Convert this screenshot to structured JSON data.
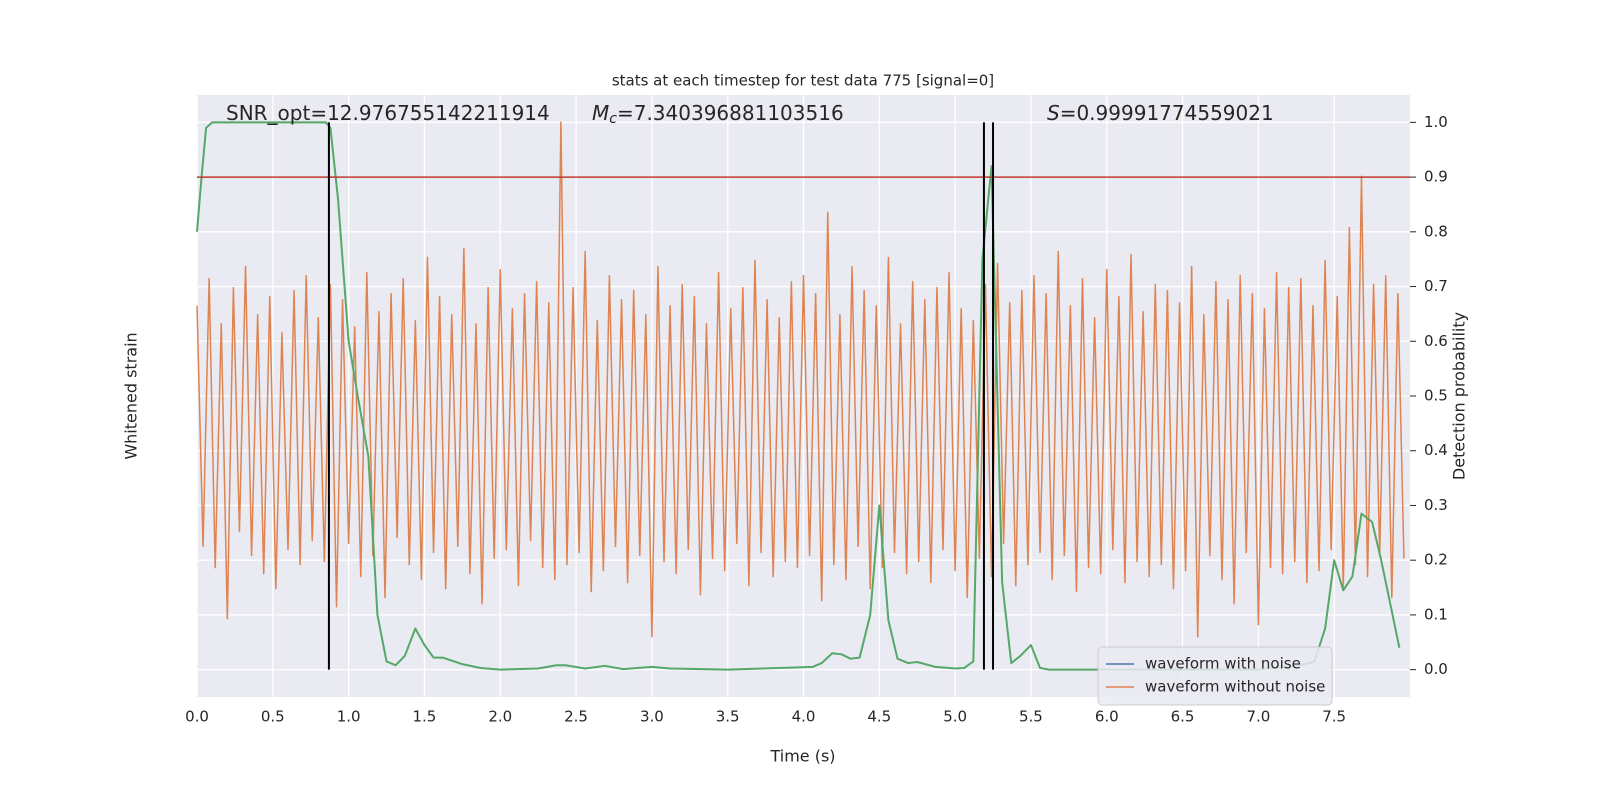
{
  "chart_data": {
    "type": "line",
    "title": "stats at each timestep for test data 775 [signal=0]",
    "xlabel": "Time (s)",
    "ylabel": "Whitened strain",
    "y2label": "Detection probability",
    "annotations": [
      {
        "text": "SNR_opt=12.976755142211914"
      },
      {
        "symbol": "M",
        "subscript": "c",
        "text": "=7.340396881103516"
      },
      {
        "symbol": "S",
        "text": "=0.99991774559021"
      }
    ],
    "xlim": [
      0,
      8
    ],
    "xticks": [
      {
        "value": 0,
        "label": "0.0"
      },
      0.5,
      {
        "value": 1,
        "label": "1.0"
      },
      1.5,
      {
        "value": 2,
        "label": "2.0"
      },
      2.5,
      {
        "value": 3,
        "label": "3.0"
      },
      3.5,
      {
        "value": 4,
        "label": "4.0"
      },
      4.5,
      {
        "value": 5,
        "label": "5.0"
      },
      5.5,
      {
        "value": 6,
        "label": "6.0"
      },
      6.5,
      {
        "value": 7,
        "label": "7.0"
      },
      7.5
    ],
    "ylim": [
      -0.88,
      1.12
    ],
    "y2lim": [
      -0.05,
      1.05
    ],
    "y2ticks": [
      {
        "value": 0,
        "label": "0.0"
      },
      0.1,
      0.2,
      0.3,
      0.4,
      0.5,
      0.6,
      0.7,
      0.8,
      0.9,
      {
        "value": 1,
        "label": "1.0"
      }
    ],
    "grid": true,
    "legend": "lower right",
    "threshold": {
      "value": 0.9,
      "color": "#c0392b"
    },
    "vlines": {
      "values": [
        0.87,
        5.19,
        5.25
      ],
      "color": "#000000"
    },
    "series": [
      {
        "name": "waveform with noise",
        "color": "#4c72b0"
      },
      {
        "name": "waveform without noise",
        "color": "#dd8452",
        "x": [
          0,
          0.04,
          0.08,
          0.12,
          0.16,
          0.2,
          0.24,
          0.28,
          0.32,
          0.36,
          0.4,
          0.44,
          0.48,
          0.52,
          0.56,
          0.6,
          0.64,
          0.68,
          0.72,
          0.76,
          0.8,
          0.84,
          0.88,
          0.92,
          0.96,
          1,
          1.04,
          1.08,
          1.12,
          1.16,
          1.2,
          1.24,
          1.28,
          1.32,
          1.36,
          1.4,
          1.44,
          1.48,
          1.52,
          1.56,
          1.6,
          1.64,
          1.68,
          1.72,
          1.76,
          1.8,
          1.84,
          1.88,
          1.92,
          1.96,
          2,
          2.04,
          2.08,
          2.12,
          2.16,
          2.2,
          2.24,
          2.28,
          2.32,
          2.36,
          2.4,
          2.44,
          2.48,
          2.52,
          2.56,
          2.6,
          2.64,
          2.68,
          2.72,
          2.76,
          2.8,
          2.84,
          2.88,
          2.92,
          2.96,
          3,
          3.04,
          3.08,
          3.12,
          3.16,
          3.2,
          3.24,
          3.28,
          3.32,
          3.36,
          3.4,
          3.44,
          3.48,
          3.52,
          3.56,
          3.6,
          3.64,
          3.68,
          3.72,
          3.76,
          3.8,
          3.84,
          3.88,
          3.92,
          3.96,
          4,
          4.04,
          4.08,
          4.12,
          4.16,
          4.2,
          4.24,
          4.28,
          4.32,
          4.36,
          4.4,
          4.44,
          4.48,
          4.52,
          4.56,
          4.6,
          4.64,
          4.68,
          4.72,
          4.76,
          4.8,
          4.84,
          4.88,
          4.92,
          4.96,
          5,
          5.04,
          5.08,
          5.12,
          5.16,
          5.2,
          5.24,
          5.28,
          5.32,
          5.36,
          5.4,
          5.44,
          5.48,
          5.52,
          5.56,
          5.6,
          5.64,
          5.68,
          5.72,
          5.76,
          5.8,
          5.84,
          5.88,
          5.92,
          5.96,
          6,
          6.04,
          6.08,
          6.12,
          6.16,
          6.2,
          6.24,
          6.28,
          6.32,
          6.36,
          6.4,
          6.44,
          6.48,
          6.52,
          6.56,
          6.6,
          6.64,
          6.68,
          6.72,
          6.76,
          6.8,
          6.84,
          6.88,
          6.92,
          6.96,
          7,
          7.04,
          7.08,
          7.12,
          7.16,
          7.2,
          7.24,
          7.28,
          7.32,
          7.36,
          7.4,
          7.44,
          7.48,
          7.52,
          7.56,
          7.6,
          7.64,
          7.68,
          7.72,
          7.76,
          7.8,
          7.84,
          7.88,
          7.92,
          7.96
        ],
        "values": [
          0.42,
          -0.38,
          0.51,
          -0.45,
          0.36,
          -0.62,
          0.48,
          -0.33,
          0.55,
          -0.41,
          0.39,
          -0.47,
          0.45,
          -0.52,
          0.33,
          -0.39,
          0.47,
          -0.44,
          0.52,
          -0.36,
          0.38,
          -0.43,
          0.49,
          -0.58,
          0.44,
          -0.37,
          0.35,
          -0.48,
          0.53,
          -0.41,
          0.4,
          -0.55,
          0.46,
          -0.35,
          0.51,
          -0.44,
          0.37,
          -0.49,
          0.58,
          -0.4,
          0.45,
          -0.52,
          0.39,
          -0.38,
          0.61,
          -0.47,
          0.36,
          -0.57,
          0.48,
          -0.42,
          0.54,
          -0.39,
          0.41,
          -0.51,
          0.46,
          -0.36,
          0.5,
          -0.45,
          0.43,
          -0.49,
          1.03,
          -0.44,
          0.48,
          -0.4,
          0.6,
          -0.53,
          0.37,
          -0.46,
          0.52,
          -0.38,
          0.44,
          -0.5,
          0.47,
          -0.41,
          0.39,
          -0.68,
          0.55,
          -0.43,
          0.42,
          -0.47,
          0.49,
          -0.39,
          0.45,
          -0.54,
          0.36,
          -0.42,
          0.53,
          -0.46,
          0.41,
          -0.37,
          0.48,
          -0.51,
          0.57,
          -0.4,
          0.44,
          -0.48,
          0.38,
          -0.43,
          0.5,
          -0.45,
          0.52,
          -0.41,
          0.46,
          -0.56,
          0.73,
          -0.44,
          0.39,
          -0.49,
          0.55,
          -0.38,
          0.47,
          -0.52,
          0.42,
          -0.45,
          0.58,
          -0.4,
          0.36,
          -0.47,
          0.5,
          -0.43,
          0.44,
          -0.5,
          0.48,
          -0.39,
          0.53,
          -0.46,
          0.41,
          -0.55,
          0.37,
          -0.42,
          0.49,
          -0.48,
          0.56,
          -0.37,
          0.43,
          -0.51,
          0.47,
          -0.44,
          0.52,
          -0.4,
          0.46,
          -0.49,
          0.6,
          -0.41,
          0.42,
          -0.53,
          0.51,
          -0.45,
          0.38,
          -0.47,
          0.54,
          -0.39,
          0.45,
          -0.5,
          0.59,
          -0.43,
          0.4,
          -0.48,
          0.49,
          -0.44,
          0.47,
          -0.52,
          0.43,
          -0.46,
          0.55,
          -0.68,
          0.39,
          -0.41,
          0.5,
          -0.49,
          0.44,
          -0.57,
          0.52,
          -0.4,
          0.46,
          -0.64,
          0.41,
          -0.45,
          0.53,
          -0.47,
          0.48,
          -0.43,
          0.51,
          -0.5,
          0.42,
          -0.46,
          0.57,
          -0.39,
          0.45,
          -0.52,
          0.68,
          -0.44,
          0.85,
          -0.48,
          0.49,
          -0.41,
          0.52,
          -0.55,
          0.46,
          -0.42
        ]
      },
      {
        "color": "#55a868",
        "axis": "y2",
        "x": [
          0,
          0.03,
          0.06,
          0.1,
          0.2,
          0.85,
          0.88,
          0.93,
          1,
          1.06,
          1.13,
          1.19,
          1.25,
          1.31,
          1.37,
          1.44,
          1.5,
          1.56,
          1.62,
          1.75,
          1.87,
          2,
          2.25,
          2.37,
          2.43,
          2.56,
          2.69,
          2.81,
          3,
          3.12,
          3.5,
          3.94,
          4.06,
          4.12,
          4.19,
          4.25,
          4.31,
          4.37,
          4.44,
          4.5,
          4.56,
          4.62,
          4.69,
          4.75,
          4.87,
          5,
          5.06,
          5.12,
          5.18,
          5.24,
          5.31,
          5.37,
          5.43,
          5.5,
          5.56,
          5.62,
          6,
          7,
          7.31,
          7.37,
          7.44,
          7.5,
          7.56,
          7.62,
          7.68,
          7.75,
          7.81,
          7.93
        ],
        "values": [
          0.8,
          0.9,
          0.99,
          1,
          1,
          1,
          0.99,
          0.86,
          0.6,
          0.5,
          0.39,
          0.1,
          0.015,
          0.008,
          0.025,
          0.075,
          0.045,
          0.022,
          0.022,
          0.01,
          0.003,
          0,
          0.002,
          0.008,
          0.008,
          0.002,
          0.007,
          0.001,
          0.005,
          0.002,
          0,
          0.004,
          0.005,
          0.012,
          0.03,
          0.028,
          0.02,
          0.022,
          0.1,
          0.3,
          0.09,
          0.02,
          0.012,
          0.014,
          0.005,
          0.002,
          0.003,
          0.015,
          0.75,
          0.92,
          0.16,
          0.012,
          0.025,
          0.045,
          0.003,
          0,
          0,
          0,
          0.01,
          0.015,
          0.075,
          0.2,
          0.145,
          0.17,
          0.285,
          0.27,
          0.2,
          0.04
        ]
      }
    ]
  }
}
